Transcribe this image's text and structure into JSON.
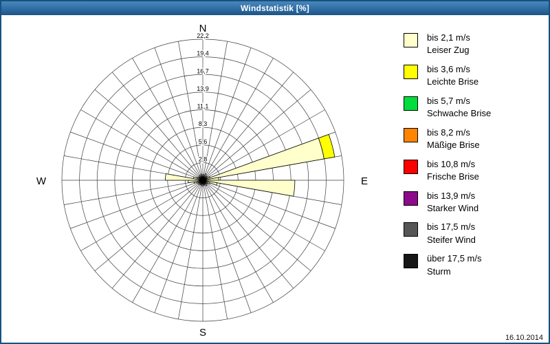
{
  "window": {
    "title": "Windstatistik [%]",
    "date": "16.10.2014"
  },
  "colors": {
    "titlebar": "#2e6da4",
    "border": "#17527f"
  },
  "legend": [
    {
      "speed": "bis 2,1 m/s",
      "name": "Leiser Zug",
      "color": "#ffffcc"
    },
    {
      "speed": "bis 3,6 m/s",
      "name": "Leichte Brise",
      "color": "#ffff00"
    },
    {
      "speed": "bis 5,7 m/s",
      "name": "Schwache Brise",
      "color": "#00dd3c"
    },
    {
      "speed": "bis 8,2 m/s",
      "name": "Mäßige Brise",
      "color": "#ff8500"
    },
    {
      "speed": "bis 10,8 m/s",
      "name": "Frische Brise",
      "color": "#ff0000"
    },
    {
      "speed": "bis 13,9 m/s",
      "name": "Starker Wind",
      "color": "#8b0b8b"
    },
    {
      "speed": "bis 17,5 m/s",
      "name": "Steifer Wind",
      "color": "#565656"
    },
    {
      "speed": "über 17,5 m/s",
      "name": "Sturm",
      "color": "#161616"
    }
  ],
  "chart_data": {
    "type": "windrose",
    "title": "Windstatistik [%]",
    "units": "%",
    "sector_count": 36,
    "sector_width_deg": 10,
    "scale_max": 22.2,
    "ring_values": [
      2.8,
      5.6,
      8.3,
      11.1,
      13.9,
      16.7,
      19.4,
      22.2
    ],
    "ring_labels": [
      "2,8",
      "5,6",
      "8,3",
      "11,1",
      "13,9",
      "16,7",
      "19,4",
      "22,2"
    ],
    "compass_labels": [
      "N",
      "E",
      "S",
      "W"
    ],
    "grid": true,
    "legend_position": "right",
    "series": [
      {
        "name": "bis 2,1 m/s",
        "color": "#ffffcc",
        "values": [
          0.9,
          0.6,
          1.1,
          0.6,
          0.9,
          0.7,
          1.2,
          19.4,
          2.5,
          14.5,
          2.3,
          1.2,
          0.9,
          0.7,
          1.0,
          0.6,
          0.8,
          0.7,
          0.9,
          0.6,
          0.8,
          0.6,
          0.9,
          0.7,
          1.0,
          1.4,
          2.3,
          5.9,
          1.5,
          1.0,
          0.8,
          0.7,
          0.9,
          0.6,
          1.0,
          0.7
        ]
      },
      {
        "name": "bis 3,6 m/s",
        "color": "#ffff00",
        "values": [
          0,
          0,
          0,
          0,
          0,
          0,
          0,
          1.7,
          0,
          0,
          0,
          0,
          0,
          0,
          0,
          0,
          0,
          0,
          0,
          0,
          0,
          0,
          0,
          0,
          0,
          0,
          0,
          0,
          0,
          0,
          0,
          0,
          0,
          0,
          0,
          0
        ]
      }
    ]
  }
}
